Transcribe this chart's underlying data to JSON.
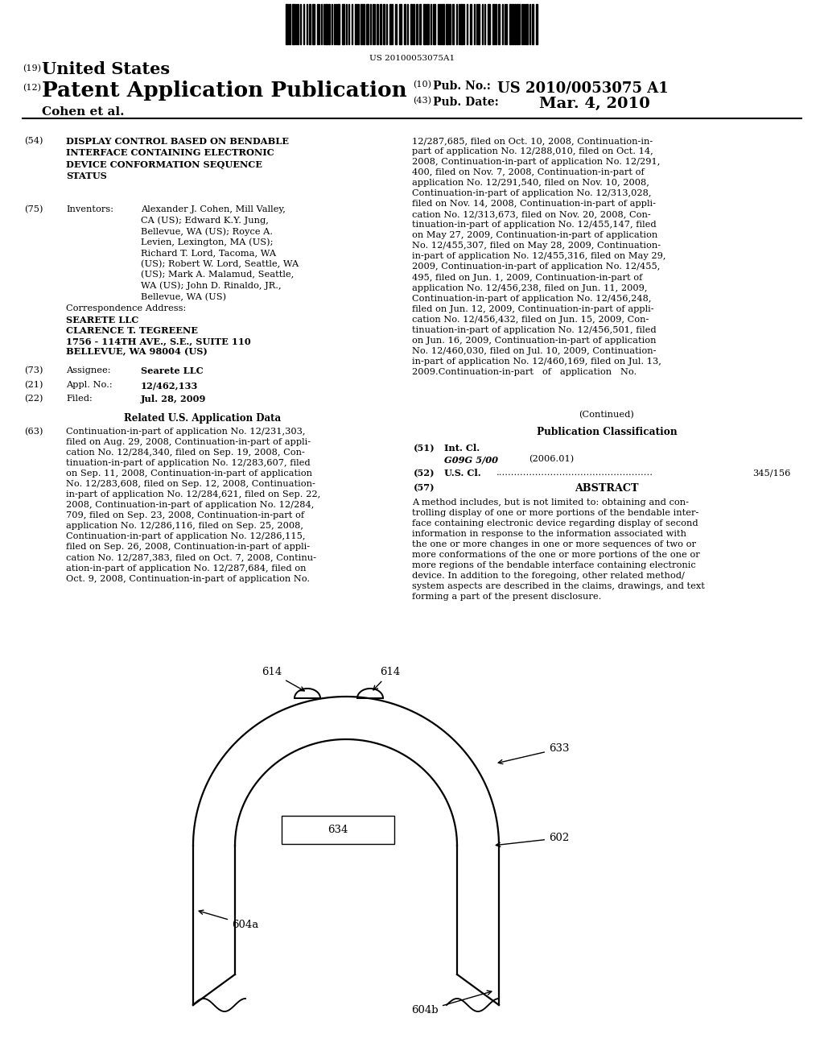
{
  "barcode_text": "US 20100053075A1",
  "bg_color": "#ffffff",
  "text_color": "#000000",
  "field_54_text": "DISPLAY CONTROL BASED ON BENDABLE\nINTERFACE CONTAINING ELECTRONIC\nDEVICE CONFORMATION SEQUENCE\nSTATUS",
  "field_75_inventors": "Alexander J. Cohen, Mill Valley,\nCA (US); Edward K.Y. Jung,\nBellevue, WA (US); Royce A.\nLevien, Lexington, MA (US);\nRichard T. Lord, Tacoma, WA\n(US); Robert W. Lord, Seattle, WA\n(US); Mark A. Malamud, Seattle,\nWA (US); John D. Rinaldo, JR.,\nBellevue, WA (US)",
  "field_63_text": "Continuation-in-part of application No. 12/231,303,\nfiled on Aug. 29, 2008, Continuation-in-part of appli-\ncation No. 12/284,340, filed on Sep. 19, 2008, Con-\ntinuation-in-part of application No. 12/283,607, filed\non Sep. 11, 2008, Continuation-in-part of application\nNo. 12/283,608, filed on Sep. 12, 2008, Continuation-\nin-part of application No. 12/284,621, filed on Sep. 22,\n2008, Continuation-in-part of application No. 12/284,\n709, filed on Sep. 23, 2008, Continuation-in-part of\napplication No. 12/286,116, filed on Sep. 25, 2008,\nContinuation-in-part of application No. 12/286,115,\nfiled on Sep. 26, 2008, Continuation-in-part of appli-\ncation No. 12/287,383, filed on Oct. 7, 2008, Continu-\nation-in-part of application No. 12/287,684, filed on\nOct. 9, 2008, Continuation-in-part of application No.",
  "right_col_text": "12/287,685, filed on Oct. 10, 2008, Continuation-in-\npart of application No. 12/288,010, filed on Oct. 14,\n2008, Continuation-in-part of application No. 12/291,\n400, filed on Nov. 7, 2008, Continuation-in-part of\napplication No. 12/291,540, filed on Nov. 10, 2008,\nContinuation-in-part of application No. 12/313,028,\nfiled on Nov. 14, 2008, Continuation-in-part of appli-\ncation No. 12/313,673, filed on Nov. 20, 2008, Con-\ntinuation-in-part of application No. 12/455,147, filed\non May 27, 2009, Continuation-in-part of application\nNo. 12/455,307, filed on May 28, 2009, Continuation-\nin-part of application No. 12/455,316, filed on May 29,\n2009, Continuation-in-part of application No. 12/455,\n495, filed on Jun. 1, 2009, Continuation-in-part of\napplication No. 12/456,238, filed on Jun. 11, 2009,\nContinuation-in-part of application No. 12/456,248,\nfiled on Jun. 12, 2009, Continuation-in-part of appli-\ncation No. 12/456,432, filed on Jun. 15, 2009, Con-\ntinuation-in-part of application No. 12/456,501, filed\non Jun. 16, 2009, Continuation-in-part of application\nNo. 12/460,030, filed on Jul. 10, 2009, Continuation-\nin-part of application No. 12/460,169, filed on Jul. 13,\n2009.Continuation-in-part   of   application   No.",
  "field_57_text": "A method includes, but is not limited to: obtaining and con-\ntrolling display of one or more portions of the bendable inter-\nface containing electronic device regarding display of second\ninformation in response to the information associated with\nthe one or more changes in one or more sequences of two or\nmore conformations of the one or more portions of the one or\nmore regions of the bendable interface containing electronic\ndevice. In addition to the foregoing, other related method/\nsystem aspects are described in the claims, drawings, and text\nforming a part of the present disclosure."
}
